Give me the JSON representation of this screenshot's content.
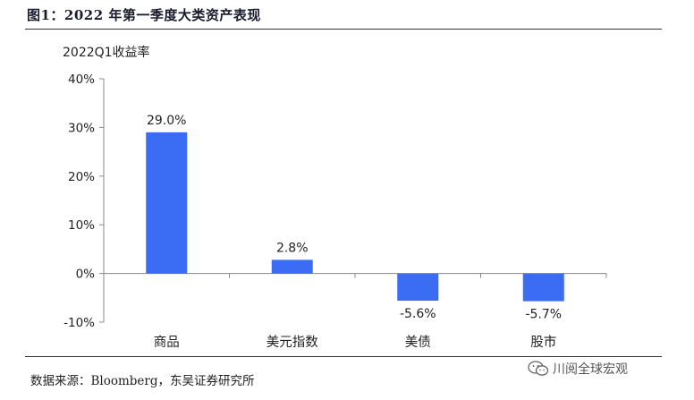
{
  "figure": {
    "title": "图1：2022 年第一季度大类资产表现",
    "source": "数据来源：Bloomberg，东吴证券研究所",
    "watermark": "川阅全球宏观",
    "watermark_icon": "wechat-icon"
  },
  "chart_data": {
    "type": "bar",
    "title": "2022Q1收益率",
    "categories": [
      "商品",
      "美元指数",
      "美债",
      "股市"
    ],
    "values": [
      29.0,
      2.8,
      -5.6,
      -5.7
    ],
    "data_labels": [
      "29.0%",
      "2.8%",
      "-5.6%",
      "-5.7%"
    ],
    "ylim": [
      -10,
      40
    ],
    "yticks": [
      -10,
      0,
      10,
      20,
      30,
      40
    ],
    "ytick_labels": [
      "-10%",
      "0%",
      "10%",
      "20%",
      "30%",
      "40%"
    ],
    "xlabel": "",
    "ylabel": "",
    "grid": false,
    "bar_color": "#3a6cf4"
  }
}
